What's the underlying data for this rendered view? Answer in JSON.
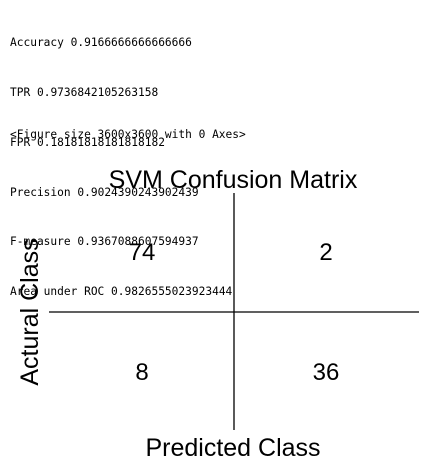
{
  "metrics": [
    {
      "name": "Accuracy",
      "value": "0.9166666666666666"
    },
    {
      "name": "TPR",
      "value": "0.9736842105263158"
    },
    {
      "name": "FPR",
      "value": "0.18181818181818182"
    },
    {
      "name": "Precision",
      "value": "0.9024390243902439"
    },
    {
      "name": "F-measure",
      "value": "0.9367088607594937"
    },
    {
      "name": "Area under ROC",
      "value": "0.9826555023923444"
    }
  ],
  "figure_note": "<Figure size 3600x3600 with 0 Axes>",
  "chart_data": {
    "type": "table",
    "title": "SVM Confusion Matrix",
    "xlabel": "Predicted Class",
    "ylabel": "Actural Class",
    "rows": [
      [
        74,
        2
      ],
      [
        8,
        36
      ]
    ]
  }
}
